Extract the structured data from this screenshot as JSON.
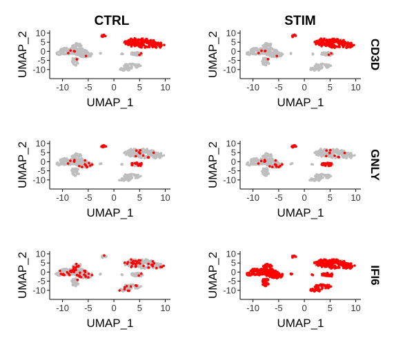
{
  "chart_data": {
    "type": "scatter",
    "columns": [
      "CTRL",
      "STIM"
    ],
    "rows": [
      "CD3D",
      "GNLY",
      "IFI6"
    ],
    "xlabel": "UMAP_1",
    "ylabel": "UMAP_2",
    "xlim": [
      -12.5,
      11
    ],
    "ylim": [
      -15,
      11.5
    ],
    "xticks": [
      -10,
      -5,
      0,
      5,
      10
    ],
    "yticks": [
      10,
      5,
      0,
      -5,
      -10
    ],
    "colors": {
      "low": "#bebebe",
      "high": "#ff0000"
    },
    "clusters": [
      {
        "x": -9,
        "y": 0,
        "rx": 1.6,
        "ry": 2.0,
        "n": 70
      },
      {
        "x": -7,
        "y": 0,
        "rx": 1.6,
        "ry": 2.0,
        "n": 70
      },
      {
        "x": -5.5,
        "y": -1.5,
        "rx": 1.5,
        "ry": 1.8,
        "n": 50
      },
      {
        "x": -7.3,
        "y": 3.5,
        "rx": 0.9,
        "ry": 1.2,
        "n": 30
      },
      {
        "x": -7.5,
        "y": -5.5,
        "rx": 0.7,
        "ry": 2.2,
        "n": 30
      },
      {
        "x": -10.8,
        "y": -1.2,
        "rx": 0.7,
        "ry": 0.8,
        "n": 10
      },
      {
        "x": -2,
        "y": 8.5,
        "rx": 0.5,
        "ry": 0.7,
        "n": 18
      },
      {
        "x": 3.5,
        "y": 5,
        "rx": 1.5,
        "ry": 2.2,
        "n": 60
      },
      {
        "x": 6,
        "y": 4.5,
        "rx": 2.2,
        "ry": 2.6,
        "n": 110
      },
      {
        "x": 8.5,
        "y": 3.5,
        "rx": 1.2,
        "ry": 1.6,
        "n": 45
      },
      {
        "x": 4.5,
        "y": -1.5,
        "rx": 1.3,
        "ry": 1.0,
        "n": 35
      },
      {
        "x": 3.5,
        "y": -8,
        "rx": 1.7,
        "ry": 1.2,
        "n": 40
      },
      {
        "x": 2,
        "y": -10,
        "rx": 1.3,
        "ry": 0.8,
        "n": 20
      },
      {
        "x": -2.5,
        "y": -1,
        "rx": 0.3,
        "ry": 0.3,
        "n": 3
      },
      {
        "x": 1.5,
        "y": -1.5,
        "rx": 0.25,
        "ry": 0.25,
        "n": 3
      }
    ],
    "panels": [
      {
        "row": 0,
        "col": 0,
        "condition": "CTRL",
        "gene": "CD3D",
        "expr": [
          0.05,
          0.05,
          0.03,
          0,
          0.05,
          0,
          0.6,
          0.9,
          0.85,
          0.9,
          0.1,
          0,
          0,
          0,
          0.3
        ]
      },
      {
        "row": 0,
        "col": 1,
        "condition": "STIM",
        "gene": "CD3D",
        "expr": [
          0.05,
          0.05,
          0.03,
          0,
          0.05,
          0,
          0.6,
          0.85,
          0.85,
          0.85,
          0.1,
          0,
          0,
          0,
          0.3
        ]
      },
      {
        "row": 1,
        "col": 0,
        "condition": "CTRL",
        "gene": "GNLY",
        "expr": [
          0.05,
          0.1,
          0.2,
          0.05,
          0,
          0,
          0.95,
          0,
          0.05,
          0,
          0.6,
          0,
          0,
          0,
          0.2
        ]
      },
      {
        "row": 1,
        "col": 1,
        "condition": "STIM",
        "gene": "GNLY",
        "expr": [
          0.05,
          0.1,
          0.15,
          0.05,
          0,
          0,
          0.95,
          0,
          0.05,
          0,
          0.7,
          0,
          0,
          0,
          0.2
        ]
      },
      {
        "row": 2,
        "col": 0,
        "condition": "CTRL",
        "gene": "IFI6",
        "expr": [
          0.2,
          0.2,
          0.2,
          0.15,
          0.1,
          0.1,
          0.2,
          0.15,
          0.1,
          0.1,
          0.1,
          0.15,
          0.1,
          0,
          0
        ]
      },
      {
        "row": 2,
        "col": 1,
        "condition": "STIM",
        "gene": "IFI6",
        "expr": [
          0.98,
          0.98,
          0.98,
          0.98,
          0.95,
          0.95,
          0.6,
          0.95,
          0.95,
          0.95,
          0.95,
          0.95,
          0.95,
          0.9,
          0.9
        ]
      }
    ]
  }
}
